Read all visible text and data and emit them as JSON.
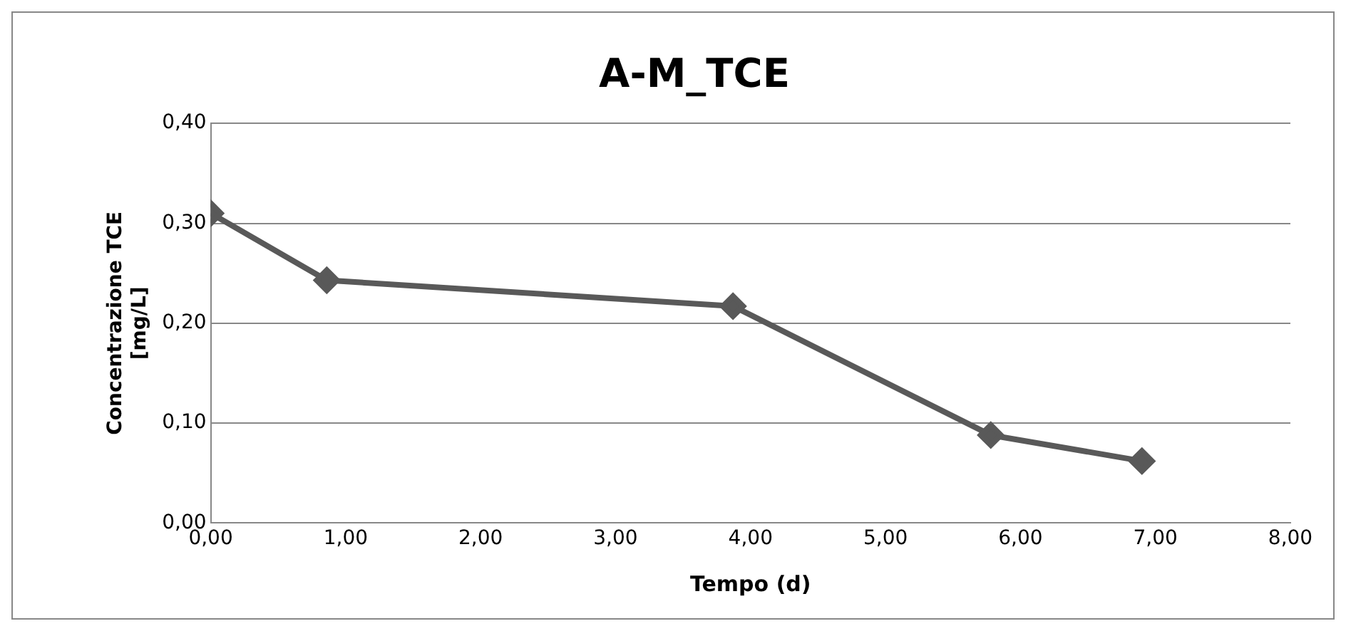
{
  "chart_data": {
    "type": "line",
    "title": "A-M_TCE",
    "xlabel": "Tempo (d)",
    "ylabel": "Concentrazione TCE [mg/L]",
    "x": [
      0,
      0.86,
      3.87,
      5.78,
      6.9
    ],
    "series": [
      {
        "color": "#595959",
        "values": [
          0.31,
          0.243,
          0.217,
          0.088,
          0.062
        ]
      }
    ],
    "xlim": [
      0,
      8
    ],
    "xticks": [
      {
        "value": 0,
        "label": "0,00"
      },
      {
        "value": 1,
        "label": "1,00"
      },
      {
        "value": 2,
        "label": "2,00"
      },
      {
        "value": 3,
        "label": "3,00"
      },
      {
        "value": 4,
        "label": "4,00"
      },
      {
        "value": 5,
        "label": "5,00"
      },
      {
        "value": 6,
        "label": "6,00"
      },
      {
        "value": 7,
        "label": "7,00"
      },
      {
        "value": 8,
        "label": "8,00"
      }
    ],
    "ylim": [
      0,
      0.4
    ],
    "yticks": [
      {
        "value": 0,
        "label": "0,00"
      },
      {
        "value": 0.1,
        "label": "0,10"
      },
      {
        "value": 0.2,
        "label": "0,20"
      },
      {
        "value": 0.3,
        "label": "0,30"
      },
      {
        "value": 0.4,
        "label": "0,40"
      }
    ],
    "grid": "y",
    "legend": false,
    "marker": "diamond",
    "line_style": "solid"
  }
}
